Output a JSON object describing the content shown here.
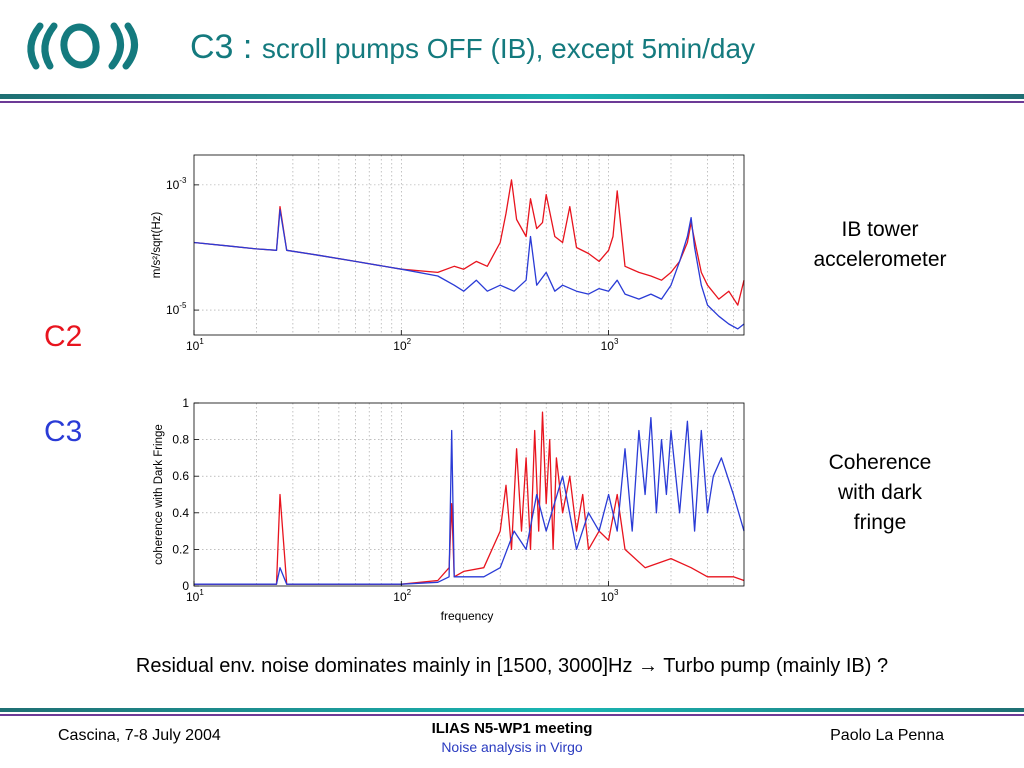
{
  "header": {
    "title_main": "C3 : ",
    "title_sub": "scroll pumps OFF (IB), except 5min/day"
  },
  "labels": {
    "c2": "C2",
    "c3": "C3"
  },
  "colors": {
    "title": "#147a7e",
    "c2": "#e8141e",
    "c3": "#2a3bd6",
    "rule_teal": "#19b6b3",
    "rule_purple": "#6c3a96",
    "footer_sub": "#2a3bc0"
  },
  "captions": {
    "top_line1": "IB tower",
    "top_line2": "accelerometer",
    "bottom_line1": "Coherence",
    "bottom_line2": "with dark",
    "bottom_line3": "fringe"
  },
  "conclusion": {
    "before": "Residual env. noise dominates mainly in [1500, 3000]Hz ",
    "arrow": "→",
    "after": " Turbo pump (mainly IB) ?"
  },
  "footer": {
    "left": "Cascina, 7-8 July 2004",
    "center_line1": "ILIAS N5-WP1 meeting",
    "center_line2": "Noise analysis in Virgo",
    "right": "Paolo La Penna"
  },
  "chart_data": [
    {
      "type": "line",
      "xscale": "log",
      "yscale": "log",
      "xlim": [
        10,
        4500
      ],
      "ylim": [
        4e-06,
        0.003
      ],
      "ylabel": "m/s²/sqrt(Hz)",
      "xticks": [
        {
          "base": "10",
          "exp": "1",
          "value": 10
        },
        {
          "base": "10",
          "exp": "2",
          "value": 100
        },
        {
          "base": "10",
          "exp": "3",
          "value": 1000
        }
      ],
      "yticks": [
        {
          "base": "10",
          "exp": "-3",
          "value": 0.001
        },
        {
          "base": "10",
          "exp": "-5",
          "value": 1e-05
        }
      ],
      "grid": true,
      "series": [
        {
          "color": "#e8141e",
          "x": [
            10,
            15,
            20,
            25,
            26,
            28,
            40,
            60,
            100,
            150,
            180,
            200,
            230,
            260,
            300,
            320,
            340,
            360,
            400,
            420,
            450,
            480,
            500,
            550,
            600,
            650,
            700,
            800,
            900,
            1000,
            1050,
            1100,
            1200,
            1400,
            1600,
            1800,
            2000,
            2200,
            2400,
            2500,
            2600,
            2800,
            3000,
            3400,
            3800,
            4200,
            4500
          ],
          "y": [
            0.00012,
            0.000105,
            9.5e-05,
            9e-05,
            0.00045,
            9e-05,
            7.5e-05,
            6e-05,
            4.5e-05,
            4e-05,
            5e-05,
            4.5e-05,
            6e-05,
            5e-05,
            0.00012,
            0.00035,
            0.0012,
            0.00028,
            0.00015,
            0.0006,
            0.0002,
            0.00025,
            0.0007,
            0.00015,
            0.00012,
            0.00045,
            0.0001,
            8e-05,
            6e-05,
            9e-05,
            0.00015,
            0.0008,
            5e-05,
            4e-05,
            3.5e-05,
            3e-05,
            4e-05,
            6e-05,
            0.00012,
            0.00025,
            0.00013,
            4e-05,
            2.5e-05,
            1.5e-05,
            2e-05,
            1.2e-05,
            3e-05
          ]
        },
        {
          "color": "#2a3bd6",
          "x": [
            10,
            15,
            20,
            25,
            26,
            28,
            40,
            60,
            100,
            150,
            180,
            200,
            230,
            260,
            300,
            350,
            400,
            420,
            450,
            500,
            550,
            600,
            700,
            800,
            900,
            1000,
            1100,
            1200,
            1400,
            1600,
            1800,
            2000,
            2200,
            2400,
            2500,
            2600,
            2800,
            3000,
            3400,
            3800,
            4200,
            4500
          ],
          "y": [
            0.00012,
            0.000105,
            9.5e-05,
            9e-05,
            0.0004,
            9e-05,
            7.5e-05,
            6e-05,
            4.5e-05,
            3.5e-05,
            2.5e-05,
            2e-05,
            3e-05,
            2e-05,
            2.5e-05,
            2e-05,
            3e-05,
            0.00015,
            2.5e-05,
            4e-05,
            2e-05,
            2.5e-05,
            2e-05,
            1.8e-05,
            2.2e-05,
            2e-05,
            3e-05,
            1.8e-05,
            1.5e-05,
            1.8e-05,
            1.5e-05,
            2.5e-05,
            6e-05,
            0.00015,
            0.0003,
            0.0001,
            2.5e-05,
            1.2e-05,
            8e-06,
            6e-06,
            5e-06,
            6e-06
          ]
        }
      ]
    },
    {
      "type": "line",
      "xscale": "log",
      "yscale": "linear",
      "xlim": [
        10,
        4500
      ],
      "ylim": [
        0,
        1
      ],
      "xlabel": "frequency",
      "ylabel": "coherence with Dark Fringe",
      "xticks": [
        {
          "base": "10",
          "exp": "1",
          "value": 10
        },
        {
          "base": "10",
          "exp": "2",
          "value": 100
        },
        {
          "base": "10",
          "exp": "3",
          "value": 1000
        }
      ],
      "yticks": [
        {
          "label": "0",
          "value": 0
        },
        {
          "label": "0.2",
          "value": 0.2
        },
        {
          "label": "0.4",
          "value": 0.4
        },
        {
          "label": "0.6",
          "value": 0.6
        },
        {
          "label": "0.8",
          "value": 0.8
        },
        {
          "label": "1",
          "value": 1
        }
      ],
      "grid": true,
      "series": [
        {
          "color": "#e8141e",
          "x": [
            10,
            15,
            20,
            25,
            26,
            28,
            50,
            100,
            150,
            170,
            175,
            180,
            200,
            250,
            300,
            320,
            340,
            360,
            380,
            400,
            420,
            440,
            460,
            480,
            500,
            520,
            540,
            560,
            600,
            650,
            700,
            750,
            800,
            900,
            1000,
            1100,
            1200,
            1500,
            2000,
            2500,
            3000,
            4000,
            4500
          ],
          "y": [
            0.01,
            0.01,
            0.01,
            0.01,
            0.5,
            0.01,
            0.01,
            0.01,
            0.03,
            0.1,
            0.45,
            0.05,
            0.08,
            0.1,
            0.3,
            0.55,
            0.2,
            0.75,
            0.3,
            0.7,
            0.2,
            0.85,
            0.3,
            0.95,
            0.45,
            0.8,
            0.2,
            0.7,
            0.4,
            0.6,
            0.3,
            0.5,
            0.2,
            0.3,
            0.25,
            0.5,
            0.2,
            0.1,
            0.15,
            0.1,
            0.05,
            0.05,
            0.03
          ]
        },
        {
          "color": "#2a3bd6",
          "x": [
            10,
            15,
            20,
            25,
            26,
            28,
            50,
            100,
            150,
            170,
            175,
            180,
            200,
            250,
            300,
            350,
            400,
            450,
            500,
            600,
            700,
            800,
            900,
            1000,
            1100,
            1200,
            1300,
            1400,
            1500,
            1600,
            1700,
            1800,
            1900,
            2000,
            2200,
            2400,
            2600,
            2800,
            3000,
            3200,
            3500,
            4000,
            4500
          ],
          "y": [
            0.01,
            0.01,
            0.01,
            0.01,
            0.1,
            0.01,
            0.01,
            0.01,
            0.02,
            0.05,
            0.85,
            0.05,
            0.05,
            0.05,
            0.1,
            0.3,
            0.2,
            0.5,
            0.3,
            0.6,
            0.2,
            0.4,
            0.3,
            0.5,
            0.3,
            0.75,
            0.3,
            0.85,
            0.5,
            0.92,
            0.4,
            0.8,
            0.5,
            0.85,
            0.4,
            0.9,
            0.3,
            0.85,
            0.4,
            0.6,
            0.7,
            0.5,
            0.3
          ]
        }
      ]
    }
  ]
}
